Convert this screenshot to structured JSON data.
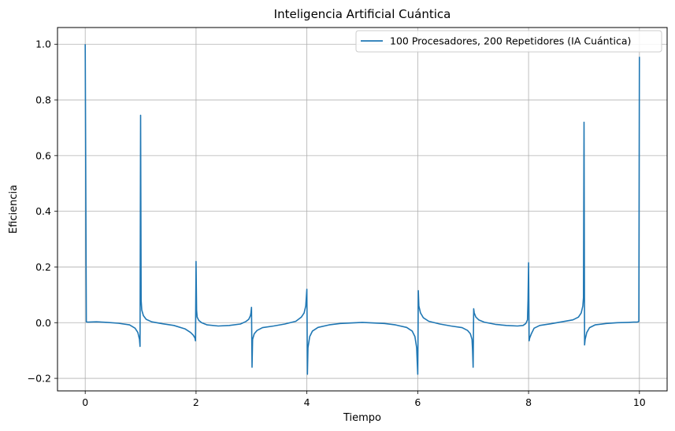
{
  "chart_data": {
    "type": "line",
    "title": "Inteligencia Artificial Cuántica",
    "xlabel": "Tiempo",
    "ylabel": "Eficiencia",
    "xlim": [
      -0.5,
      10.5
    ],
    "ylim": [
      -0.245,
      1.06
    ],
    "xticks": [
      0,
      2,
      4,
      6,
      8,
      10
    ],
    "yticks": [
      -0.2,
      0.0,
      0.2,
      0.4,
      0.6,
      0.8,
      1.0
    ],
    "ytick_labels": [
      "−0.2",
      "0.0",
      "0.2",
      "0.4",
      "0.6",
      "0.8",
      "1.0"
    ],
    "grid": true,
    "legend_position": "upper right",
    "series": [
      {
        "name": "100 Procesadores, 200 Repetidores (IA Cuántica)",
        "color": "#1f77b4",
        "x": [
          0,
          0.02,
          0.05,
          0.2,
          0.4,
          0.6,
          0.8,
          0.9,
          0.95,
          0.98,
          0.99,
          1.0,
          1.01,
          1.02,
          1.05,
          1.1,
          1.2,
          1.4,
          1.6,
          1.8,
          1.9,
          1.95,
          1.98,
          1.99,
          2.0,
          2.01,
          2.02,
          2.05,
          2.1,
          2.2,
          2.4,
          2.6,
          2.8,
          2.9,
          2.95,
          2.98,
          2.99,
          3.0,
          3.01,
          3.02,
          3.05,
          3.1,
          3.2,
          3.4,
          3.6,
          3.8,
          3.9,
          3.95,
          3.98,
          3.99,
          4.0,
          4.01,
          4.02,
          4.05,
          4.1,
          4.2,
          4.4,
          4.6,
          5.0,
          5.4,
          5.6,
          5.8,
          5.9,
          5.95,
          5.98,
          5.99,
          6.0,
          6.01,
          6.02,
          6.05,
          6.1,
          6.2,
          6.4,
          6.6,
          6.8,
          6.9,
          6.95,
          6.98,
          6.99,
          7.0,
          7.01,
          7.02,
          7.05,
          7.1,
          7.2,
          7.4,
          7.6,
          7.8,
          7.9,
          7.95,
          7.98,
          7.99,
          8.0,
          8.01,
          8.02,
          8.05,
          8.1,
          8.2,
          8.4,
          8.6,
          8.8,
          8.9,
          8.95,
          8.98,
          8.99,
          9.0,
          9.01,
          9.02,
          9.05,
          9.1,
          9.2,
          9.4,
          9.6,
          9.8,
          9.9,
          9.95,
          9.98,
          9.99,
          10.0
        ],
        "y": [
          1.0,
          0.003,
          0.002,
          0.003,
          0.001,
          -0.002,
          -0.008,
          -0.02,
          -0.035,
          -0.06,
          -0.085,
          0.745,
          0.08,
          0.045,
          0.025,
          0.012,
          0.003,
          -0.004,
          -0.01,
          -0.022,
          -0.035,
          -0.045,
          -0.055,
          -0.065,
          0.22,
          0.045,
          0.02,
          0.008,
          0.0,
          -0.008,
          -0.012,
          -0.01,
          -0.005,
          0.004,
          0.012,
          0.025,
          0.035,
          0.055,
          -0.16,
          -0.06,
          -0.04,
          -0.028,
          -0.018,
          -0.012,
          -0.005,
          0.005,
          0.02,
          0.035,
          0.06,
          0.09,
          0.12,
          -0.185,
          -0.09,
          -0.05,
          -0.03,
          -0.017,
          -0.008,
          -0.003,
          0.001,
          -0.003,
          -0.008,
          -0.017,
          -0.03,
          -0.05,
          -0.09,
          -0.14,
          -0.185,
          0.115,
          0.06,
          0.035,
          0.018,
          0.005,
          -0.005,
          -0.012,
          -0.018,
          -0.028,
          -0.04,
          -0.06,
          -0.1,
          -0.16,
          0.05,
          0.035,
          0.02,
          0.01,
          0.002,
          -0.006,
          -0.01,
          -0.012,
          -0.01,
          -0.003,
          0.01,
          0.08,
          0.215,
          -0.065,
          -0.055,
          -0.04,
          -0.02,
          -0.01,
          -0.004,
          0.003,
          0.01,
          0.02,
          0.035,
          0.06,
          0.09,
          0.72,
          -0.08,
          -0.06,
          -0.035,
          -0.018,
          -0.008,
          -0.003,
          0.0,
          0.001,
          0.002,
          0.002,
          0.003,
          0.005,
          0.955
        ]
      }
    ]
  }
}
